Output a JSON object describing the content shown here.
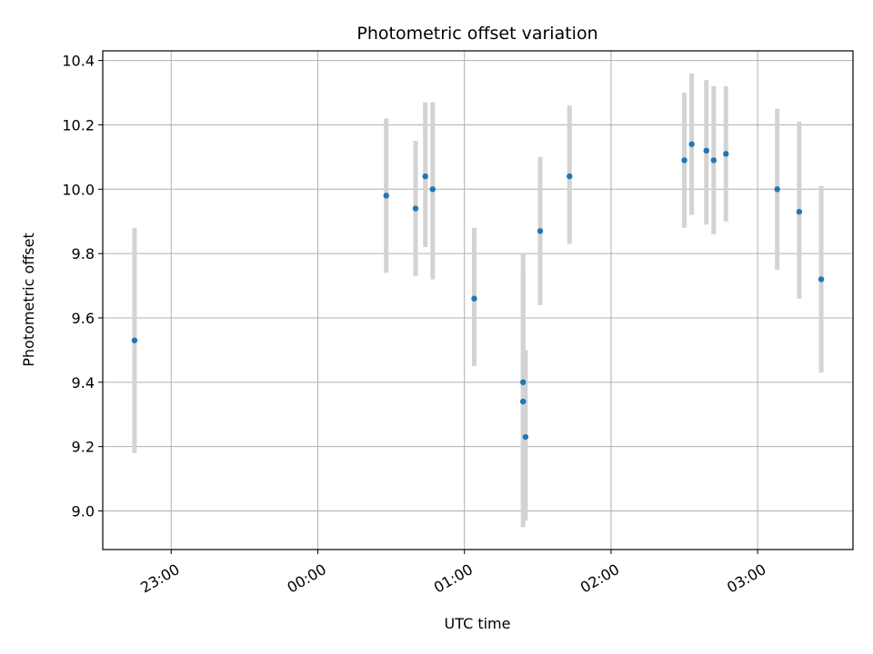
{
  "chart_data": {
    "type": "scatter",
    "title": "Photometric offset variation",
    "xlabel": "UTC time",
    "ylabel": "Photometric offset",
    "xlim": [
      "22:32",
      "03:39"
    ],
    "ylim": [
      8.88,
      10.43
    ],
    "grid": true,
    "x_ticks": [
      "23:00",
      "00:00",
      "01:00",
      "02:00",
      "03:00"
    ],
    "y_ticks": [
      "9.0",
      "9.2",
      "9.4",
      "9.6",
      "9.8",
      "10.0",
      "10.2",
      "10.4"
    ],
    "colors": {
      "point": "#1f77b4",
      "errorbar": "#d3d3d3",
      "grid": "#b0b0b0"
    },
    "series": [
      {
        "points": [
          {
            "x": "22:45",
            "y": 9.53,
            "ylow": 9.18,
            "yhigh": 9.88
          },
          {
            "x": "00:28",
            "y": 9.98,
            "ylow": 9.74,
            "yhigh": 10.22
          },
          {
            "x": "00:40",
            "y": 9.94,
            "ylow": 9.73,
            "yhigh": 10.15
          },
          {
            "x": "00:44",
            "y": 10.04,
            "ylow": 9.82,
            "yhigh": 10.27
          },
          {
            "x": "00:47",
            "y": 10.0,
            "ylow": 9.72,
            "yhigh": 10.27
          },
          {
            "x": "01:04",
            "y": 9.66,
            "ylow": 9.45,
            "yhigh": 9.88
          },
          {
            "x": "01:24",
            "y": 9.4,
            "ylow": 9.0,
            "yhigh": 9.8
          },
          {
            "x": "01:24",
            "y": 9.34,
            "ylow": 8.95,
            "yhigh": 9.74
          },
          {
            "x": "01:25",
            "y": 9.23,
            "ylow": 8.97,
            "yhigh": 9.5
          },
          {
            "x": "01:31",
            "y": 9.87,
            "ylow": 9.64,
            "yhigh": 10.1
          },
          {
            "x": "01:43",
            "y": 10.04,
            "ylow": 9.83,
            "yhigh": 10.26
          },
          {
            "x": "02:30",
            "y": 10.09,
            "ylow": 9.88,
            "yhigh": 10.3
          },
          {
            "x": "02:33",
            "y": 10.14,
            "ylow": 9.92,
            "yhigh": 10.36
          },
          {
            "x": "02:39",
            "y": 10.12,
            "ylow": 9.89,
            "yhigh": 10.34
          },
          {
            "x": "02:42",
            "y": 10.09,
            "ylow": 9.86,
            "yhigh": 10.32
          },
          {
            "x": "02:47",
            "y": 10.11,
            "ylow": 9.9,
            "yhigh": 10.32
          },
          {
            "x": "03:08",
            "y": 10.0,
            "ylow": 9.75,
            "yhigh": 10.25
          },
          {
            "x": "03:17",
            "y": 9.93,
            "ylow": 9.66,
            "yhigh": 10.21
          },
          {
            "x": "03:26",
            "y": 9.72,
            "ylow": 9.43,
            "yhigh": 10.01
          }
        ]
      }
    ]
  }
}
